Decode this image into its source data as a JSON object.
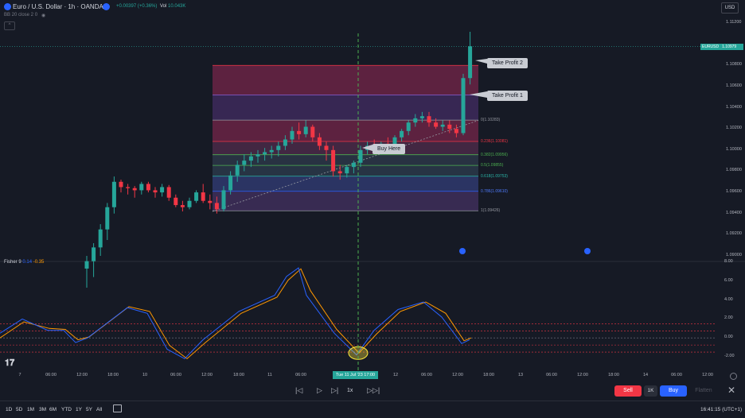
{
  "header": {
    "symbol_title": "Euro / U.S. Dollar · 1h · OANDA",
    "change": "+0.00397 (+0.36%)",
    "vol_label": "Vol",
    "vol_value": "10.043K",
    "indicator": "BB 20 close 2 0",
    "currency": "USD",
    "collapse_glyph": "^"
  },
  "colors": {
    "bg": "#161a25",
    "up": "#26a69a",
    "down": "#f23645",
    "fisher": "#2962ff",
    "trigger": "#ff9800",
    "fib_red": "#f23645",
    "fib_green": "#4caf50",
    "fib_blue": "#2962ff"
  },
  "price_axis": [
    "1.11200",
    "1.10800",
    "1.10600",
    "1.10400",
    "1.10200",
    "1.10000",
    "1.09800",
    "1.09600",
    "1.09400",
    "1.09200",
    "1.09000"
  ],
  "symbol_badge": {
    "name": "EURUSD",
    "price": "1.10979"
  },
  "fib_levels": [
    {
      "text": "0(1.10283)",
      "color": "#9598a1"
    },
    {
      "text": "0.236(1.10081)",
      "color": "#f23645"
    },
    {
      "text": "0.382(1.09956)",
      "color": "#4caf50"
    },
    {
      "text": "0.5(1.09855)",
      "color": "#4caf50"
    },
    {
      "text": "0.618(1.09753)",
      "color": "#2ab7a9"
    },
    {
      "text": "0.786(1.09610)",
      "color": "#4f7cff"
    },
    {
      "text": "1(1.09426)",
      "color": "#9598a1"
    }
  ],
  "annotations": {
    "take_profit_2": "Take Profit 2",
    "take_profit_1": "Take Profit 1",
    "buy_here": "Buy Here"
  },
  "fisher_panel": {
    "label": "Fisher 9",
    "value1": "0.14",
    "value2": "-0.35",
    "axis": [
      "8.00",
      "6.00",
      "4.00",
      "2.00",
      "0.00",
      "-2.00"
    ]
  },
  "time_axis": [
    {
      "t": "7"
    },
    {
      "t": "06:00"
    },
    {
      "t": "12:00"
    },
    {
      "t": "18:00"
    },
    {
      "t": "10"
    },
    {
      "t": "06:00"
    },
    {
      "t": "12:00"
    },
    {
      "t": "18:00"
    },
    {
      "t": "11"
    },
    {
      "t": "06:00"
    },
    {
      "t": "12"
    },
    {
      "t": "06:00"
    },
    {
      "t": "12:00"
    },
    {
      "t": "18:00"
    },
    {
      "t": "13"
    },
    {
      "t": "06:00"
    },
    {
      "t": "12:00"
    },
    {
      "t": "18:00"
    },
    {
      "t": "14"
    },
    {
      "t": "06:00"
    },
    {
      "t": "12:00"
    }
  ],
  "crosshair_time": "Tue 11 Jul '23   17:00",
  "playback": {
    "speed": "1x"
  },
  "trade": {
    "sell": "Sell",
    "qty": "1K",
    "buy": "Buy",
    "flatten": "Flatten"
  },
  "timeframes": [
    "1D",
    "5D",
    "1M",
    "3M",
    "6M",
    "YTD",
    "1Y",
    "5Y",
    "All"
  ],
  "clock": "16:41:15 (UTC+1)",
  "chart_data": {
    "type": "candlestick",
    "series": [
      {
        "name": "EURUSD",
        "ohlc": [
          [
            1.0888,
            1.09,
            1.087,
            1.0895
          ],
          [
            1.0895,
            1.0912,
            1.088,
            1.0908
          ],
          [
            1.0908,
            1.093,
            1.09,
            1.0925
          ],
          [
            1.0925,
            1.095,
            1.0915,
            1.0946
          ],
          [
            1.0946,
            1.0975,
            1.094,
            1.097
          ],
          [
            1.097,
            1.0972,
            1.096,
            1.0965
          ],
          [
            1.0965,
            1.0968,
            1.0958,
            1.0964
          ],
          [
            1.0964,
            1.0966,
            1.0955,
            1.0962
          ],
          [
            1.0962,
            1.097,
            1.0958,
            1.0968
          ],
          [
            1.0968,
            1.097,
            1.096,
            1.0962
          ],
          [
            1.0962,
            1.0965,
            1.0955,
            1.096
          ],
          [
            1.096,
            1.0968,
            1.0956,
            1.0965
          ],
          [
            1.0965,
            1.0967,
            1.0952,
            1.0955
          ],
          [
            1.0955,
            1.0958,
            1.0946,
            1.0948
          ],
          [
            1.0948,
            1.0952,
            1.0942,
            1.0946
          ],
          [
            1.0946,
            1.0955,
            1.0944,
            1.0952
          ],
          [
            1.0952,
            1.0962,
            1.095,
            1.096
          ],
          [
            1.096,
            1.0968,
            1.095,
            1.0952
          ],
          [
            1.0952,
            1.0958,
            1.0944,
            1.095
          ],
          [
            1.095,
            1.0956,
            1.094,
            1.0944
          ],
          [
            1.0944,
            1.0966,
            1.0942,
            1.0962
          ],
          [
            1.0962,
            1.098,
            1.0958,
            1.0976
          ],
          [
            1.0976,
            1.099,
            1.097,
            1.0986
          ],
          [
            1.0986,
            1.0996,
            1.098,
            1.099
          ],
          [
            1.099,
            1.0998,
            1.0984,
            1.0994
          ],
          [
            1.0994,
            1.1,
            1.0988,
            1.0996
          ],
          [
            1.0996,
            1.1002,
            1.099,
            1.0998
          ],
          [
            1.0998,
            1.1004,
            1.0992,
            1.1
          ],
          [
            1.1,
            1.1008,
            1.0994,
            1.1004
          ],
          [
            1.1004,
            1.1014,
            1.1,
            1.101
          ],
          [
            1.101,
            1.1022,
            1.1006,
            1.1018
          ],
          [
            1.1018,
            1.1026,
            1.101,
            1.1015
          ],
          [
            1.1015,
            1.1028,
            1.1012,
            1.1022
          ],
          [
            1.1022,
            1.1024,
            1.1008,
            1.1012
          ],
          [
            1.1012,
            1.1016,
            1.1,
            1.1004
          ],
          [
            1.1004,
            1.1008,
            1.099,
            1.1
          ],
          [
            1.1,
            1.1004,
            1.0975,
            1.098
          ],
          [
            1.098,
            1.0986,
            1.0972,
            1.0978
          ],
          [
            1.0978,
            1.0986,
            1.0974,
            1.0984
          ],
          [
            1.0984,
            1.099,
            1.0978,
            1.0988
          ],
          [
            1.0988,
            1.1004,
            1.0984,
            1.1
          ],
          [
            1.1,
            1.1008,
            1.0996,
            1.1004
          ],
          [
            1.1004,
            1.101,
            1.0998,
            1.1002
          ],
          [
            1.1002,
            1.1008,
            1.0996,
            1.1006
          ],
          [
            1.1006,
            1.1012,
            1.1,
            1.1004
          ],
          [
            1.1004,
            1.1014,
            1.1,
            1.1012
          ],
          [
            1.1012,
            1.102,
            1.1008,
            1.1018
          ],
          [
            1.1018,
            1.1028,
            1.1014,
            1.1026
          ],
          [
            1.1026,
            1.1034,
            1.1022,
            1.103
          ],
          [
            1.103,
            1.1036,
            1.1026,
            1.1032
          ],
          [
            1.1032,
            1.1036,
            1.1022,
            1.1026
          ],
          [
            1.1026,
            1.103,
            1.102,
            1.1022
          ],
          [
            1.1022,
            1.1028,
            1.1018,
            1.1024
          ],
          [
            1.1024,
            1.1028,
            1.1016,
            1.102
          ],
          [
            1.102,
            1.1024,
            1.1012,
            1.1016
          ],
          [
            1.1016,
            1.1072,
            1.1014,
            1.1068
          ],
          [
            1.1068,
            1.1112,
            1.1062,
            1.1098
          ]
        ]
      }
    ],
    "ylim": [
      1.09,
      1.112
    ]
  }
}
